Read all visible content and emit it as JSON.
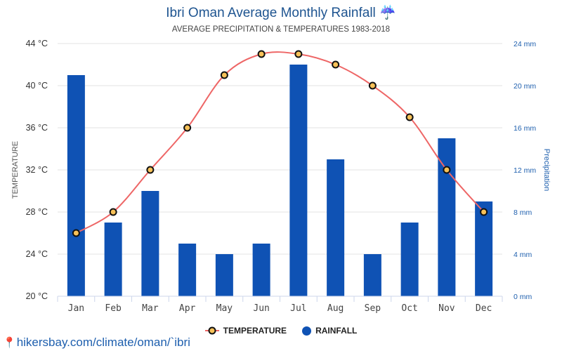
{
  "title": "Ibri Oman Average Monthly Rainfall",
  "title_icon": "umbrella-rain-icon",
  "subtitle": "AVERAGE PRECIPITATION & TEMPERATURES 1983-2018",
  "legend": {
    "temperature": "TEMPERATURE",
    "rainfall": "RAINFALL"
  },
  "footer": {
    "link": "hikersbay.com/climate/oman/`ibri",
    "icon": "map-pin-icon"
  },
  "colors": {
    "bar": "#0f52b4",
    "line": "#ee6666",
    "marker_fill": "#f7c158",
    "marker_stroke": "#111111",
    "title": "#1e5490"
  },
  "chart_data": {
    "type": "bar",
    "title": "Ibri Oman Average Monthly Rainfall",
    "subtitle": "AVERAGE PRECIPITATION & TEMPERATURES 1983-2018",
    "categories": [
      "Jan",
      "Feb",
      "Mar",
      "Apr",
      "May",
      "Jun",
      "Jul",
      "Aug",
      "Sep",
      "Oct",
      "Nov",
      "Dec"
    ],
    "series": [
      {
        "name": "RAINFALL",
        "type": "bar",
        "axis": "right",
        "unit": "mm",
        "values": [
          21,
          7,
          10,
          5,
          4,
          5,
          22,
          13,
          4,
          7,
          15,
          9
        ]
      },
      {
        "name": "TEMPERATURE",
        "type": "line",
        "axis": "left",
        "unit": "°C",
        "values": [
          26,
          28,
          32,
          36,
          41,
          43,
          43,
          42,
          40,
          37,
          32,
          28
        ]
      }
    ],
    "ylabel_left": "TEMPERATURE",
    "ylabel_right": "Precipitation",
    "ylim_left": [
      20,
      44
    ],
    "ylim_right": [
      0,
      24
    ],
    "yticks_left": [
      "20 °C",
      "24 °C",
      "28 °C",
      "32 °C",
      "36 °C",
      "40 °C",
      "44 °C"
    ],
    "yticks_right": [
      "0 mm",
      "4 mm",
      "8 mm",
      "12 mm",
      "16 mm",
      "20 mm",
      "24 mm"
    ],
    "grid": true,
    "legend_position": "bottom-center"
  }
}
